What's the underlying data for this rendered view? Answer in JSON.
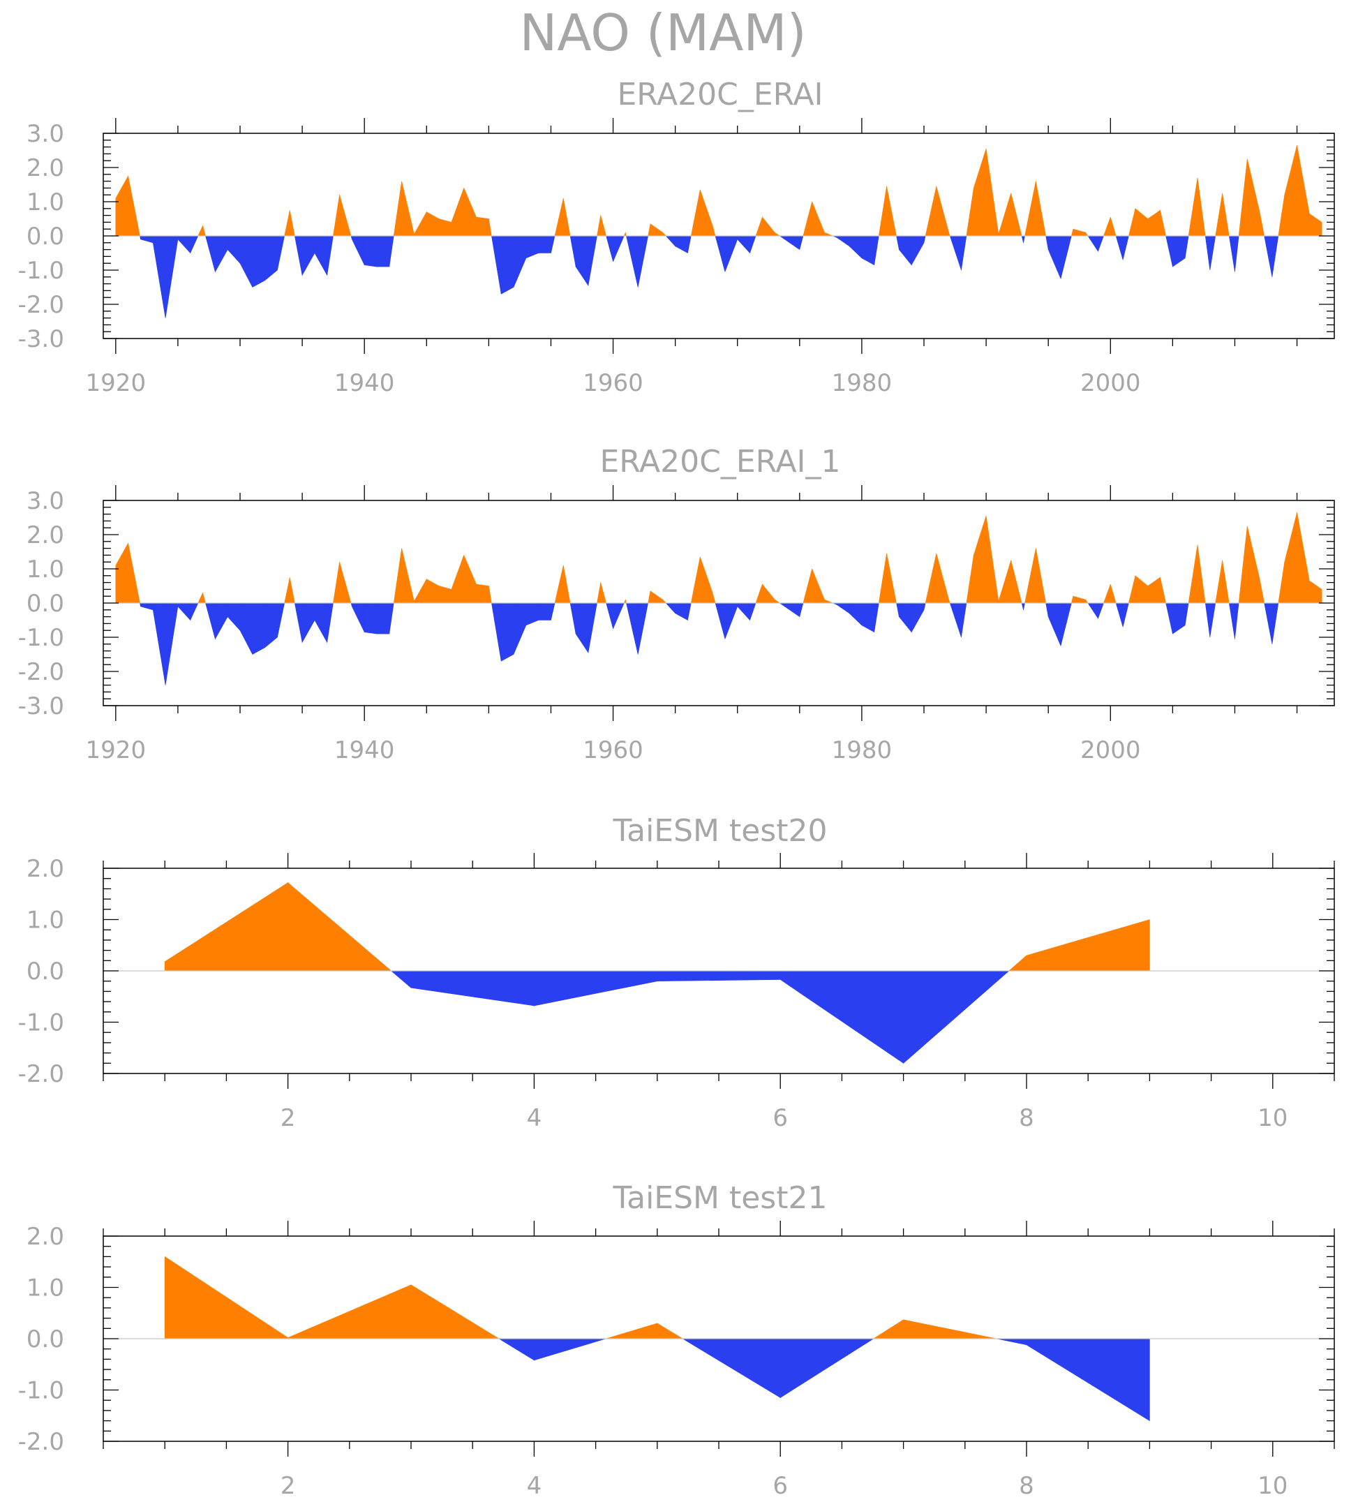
{
  "main_title": "NAO (MAM)",
  "colors": {
    "positive": "#ff8000",
    "negative": "#2a3ff0",
    "text": "#a6a6a6",
    "frame": "#000000",
    "zero_line": "#c8c8c8"
  },
  "chart_data": [
    {
      "type": "area",
      "title": "ERA20C_ERAI",
      "xlabel": "",
      "ylabel": "",
      "xlim": [
        1919,
        2018
      ],
      "ylim": [
        -3.0,
        3.0
      ],
      "x_major_ticks": [
        1920,
        1940,
        1960,
        1980,
        2000
      ],
      "x_tick_labels": [
        "1920",
        "1940",
        "1960",
        "1980",
        "2000"
      ],
      "y_ticks": [
        3.0,
        2.0,
        1.0,
        0.0,
        -1.0,
        -2.0,
        -3.0
      ],
      "y_tick_labels": [
        "3.0",
        "2.0",
        "1.0",
        "0.0",
        "-1.0",
        "-2.0",
        "-3.0"
      ],
      "grid": false,
      "fill": "above zero orange, below zero blue",
      "x": [
        1920,
        1921,
        1922,
        1923,
        1924,
        1925,
        1926,
        1927,
        1928,
        1929,
        1930,
        1931,
        1932,
        1933,
        1934,
        1935,
        1936,
        1937,
        1938,
        1939,
        1940,
        1941,
        1942,
        1943,
        1944,
        1945,
        1946,
        1947,
        1948,
        1949,
        1950,
        1951,
        1952,
        1953,
        1954,
        1955,
        1956,
        1957,
        1958,
        1959,
        1960,
        1961,
        1962,
        1963,
        1964,
        1965,
        1966,
        1967,
        1968,
        1969,
        1970,
        1971,
        1972,
        1973,
        1974,
        1975,
        1976,
        1977,
        1978,
        1979,
        1980,
        1981,
        1982,
        1983,
        1984,
        1985,
        1986,
        1987,
        1988,
        1989,
        1990,
        1991,
        1992,
        1993,
        1994,
        1995,
        1996,
        1997,
        1998,
        1999,
        2000,
        2001,
        2002,
        2003,
        2004,
        2005,
        2006,
        2007,
        2008,
        2009,
        2010,
        2011,
        2012,
        2013,
        2014,
        2015,
        2016,
        2017
      ],
      "values": [
        1.1,
        1.75,
        -0.1,
        -0.2,
        -2.4,
        -0.1,
        -0.5,
        0.3,
        -1.05,
        -0.4,
        -0.8,
        -1.5,
        -1.3,
        -1.0,
        0.75,
        -1.15,
        -0.5,
        -1.15,
        1.2,
        -0.1,
        -0.85,
        -0.9,
        -0.9,
        1.6,
        0.05,
        0.7,
        0.5,
        0.4,
        1.4,
        0.55,
        0.5,
        -1.7,
        -1.5,
        -0.65,
        -0.5,
        -0.5,
        1.1,
        -0.9,
        -1.45,
        0.6,
        -0.75,
        0.1,
        -1.5,
        0.35,
        0.1,
        -0.3,
        -0.5,
        1.35,
        0.3,
        -1.05,
        -0.1,
        -0.5,
        0.55,
        0.1,
        -0.15,
        -0.4,
        1.0,
        0.1,
        -0.05,
        -0.3,
        -0.65,
        -0.85,
        1.45,
        -0.4,
        -0.85,
        -0.2,
        1.45,
        0.1,
        -1.0,
        1.4,
        2.55,
        0.05,
        1.25,
        -0.2,
        1.6,
        -0.4,
        -1.25,
        0.2,
        0.1,
        -0.45,
        0.55,
        -0.7,
        0.8,
        0.5,
        0.75,
        -0.9,
        -0.65,
        1.7,
        -1.0,
        1.25,
        -1.05,
        2.25,
        0.7,
        -1.2,
        1.2,
        2.65,
        0.65,
        0.4
      ]
    },
    {
      "type": "area",
      "title": "ERA20C_ERAI_1",
      "xlabel": "",
      "ylabel": "",
      "xlim": [
        1919,
        2018
      ],
      "ylim": [
        -3.0,
        3.0
      ],
      "x_major_ticks": [
        1920,
        1940,
        1960,
        1980,
        2000
      ],
      "x_tick_labels": [
        "1920",
        "1940",
        "1960",
        "1980",
        "2000"
      ],
      "y_ticks": [
        3.0,
        2.0,
        1.0,
        0.0,
        -1.0,
        -2.0,
        -3.0
      ],
      "y_tick_labels": [
        "3.0",
        "2.0",
        "1.0",
        "0.0",
        "-1.0",
        "-2.0",
        "-3.0"
      ],
      "grid": false,
      "fill": "above zero orange, below zero blue",
      "x": [
        1920,
        1921,
        1922,
        1923,
        1924,
        1925,
        1926,
        1927,
        1928,
        1929,
        1930,
        1931,
        1932,
        1933,
        1934,
        1935,
        1936,
        1937,
        1938,
        1939,
        1940,
        1941,
        1942,
        1943,
        1944,
        1945,
        1946,
        1947,
        1948,
        1949,
        1950,
        1951,
        1952,
        1953,
        1954,
        1955,
        1956,
        1957,
        1958,
        1959,
        1960,
        1961,
        1962,
        1963,
        1964,
        1965,
        1966,
        1967,
        1968,
        1969,
        1970,
        1971,
        1972,
        1973,
        1974,
        1975,
        1976,
        1977,
        1978,
        1979,
        1980,
        1981,
        1982,
        1983,
        1984,
        1985,
        1986,
        1987,
        1988,
        1989,
        1990,
        1991,
        1992,
        1993,
        1994,
        1995,
        1996,
        1997,
        1998,
        1999,
        2000,
        2001,
        2002,
        2003,
        2004,
        2005,
        2006,
        2007,
        2008,
        2009,
        2010,
        2011,
        2012,
        2013,
        2014,
        2015,
        2016,
        2017
      ],
      "values": [
        1.1,
        1.75,
        -0.1,
        -0.2,
        -2.4,
        -0.1,
        -0.5,
        0.3,
        -1.05,
        -0.4,
        -0.8,
        -1.5,
        -1.3,
        -1.0,
        0.75,
        -1.15,
        -0.5,
        -1.15,
        1.2,
        -0.1,
        -0.85,
        -0.9,
        -0.9,
        1.6,
        0.05,
        0.7,
        0.5,
        0.4,
        1.4,
        0.55,
        0.5,
        -1.7,
        -1.5,
        -0.65,
        -0.5,
        -0.5,
        1.1,
        -0.9,
        -1.45,
        0.6,
        -0.75,
        0.1,
        -1.5,
        0.35,
        0.1,
        -0.3,
        -0.5,
        1.35,
        0.3,
        -1.05,
        -0.1,
        -0.5,
        0.55,
        0.1,
        -0.15,
        -0.4,
        1.0,
        0.1,
        -0.05,
        -0.3,
        -0.65,
        -0.85,
        1.45,
        -0.4,
        -0.85,
        -0.2,
        1.45,
        0.1,
        -1.0,
        1.4,
        2.55,
        0.05,
        1.25,
        -0.2,
        1.6,
        -0.4,
        -1.25,
        0.2,
        0.1,
        -0.45,
        0.55,
        -0.7,
        0.8,
        0.5,
        0.75,
        -0.9,
        -0.65,
        1.7,
        -1.0,
        1.25,
        -1.05,
        2.25,
        0.7,
        -1.2,
        1.2,
        2.65,
        0.65,
        0.4
      ]
    },
    {
      "type": "area",
      "title": "TaiESM test20",
      "xlabel": "",
      "ylabel": "",
      "xlim": [
        0.5,
        10.5
      ],
      "ylim": [
        -2.0,
        2.0
      ],
      "x_major_ticks": [
        2,
        4,
        6,
        8,
        10
      ],
      "x_tick_labels": [
        "2",
        "4",
        "6",
        "8",
        "10"
      ],
      "y_ticks": [
        2.0,
        1.0,
        0.0,
        -1.0,
        -2.0
      ],
      "y_tick_labels": [
        "2.0",
        "1.0",
        "0.0",
        "-1.0",
        "-2.0"
      ],
      "grid": false,
      "fill": "above zero orange, below zero blue",
      "x": [
        1,
        2,
        3,
        4,
        5,
        6,
        7,
        8,
        9
      ],
      "values": [
        0.18,
        1.72,
        -0.33,
        -0.68,
        -0.2,
        -0.17,
        -1.8,
        0.3,
        1.0
      ]
    },
    {
      "type": "area",
      "title": "TaiESM test21",
      "xlabel": "",
      "ylabel": "",
      "xlim": [
        0.5,
        10.5
      ],
      "ylim": [
        -2.0,
        2.0
      ],
      "x_major_ticks": [
        2,
        4,
        6,
        8,
        10
      ],
      "x_tick_labels": [
        "2",
        "4",
        "6",
        "8",
        "10"
      ],
      "y_ticks": [
        2.0,
        1.0,
        0.0,
        -1.0,
        -2.0
      ],
      "y_tick_labels": [
        "2.0",
        "1.0",
        "0.0",
        "-1.0",
        "-2.0"
      ],
      "grid": false,
      "fill": "above zero orange, below zero blue",
      "x": [
        1,
        2,
        3,
        4,
        5,
        6,
        7,
        8,
        9
      ],
      "values": [
        1.6,
        0.02,
        1.05,
        -0.42,
        0.3,
        -1.15,
        0.37,
        -0.12,
        -1.6
      ]
    }
  ]
}
